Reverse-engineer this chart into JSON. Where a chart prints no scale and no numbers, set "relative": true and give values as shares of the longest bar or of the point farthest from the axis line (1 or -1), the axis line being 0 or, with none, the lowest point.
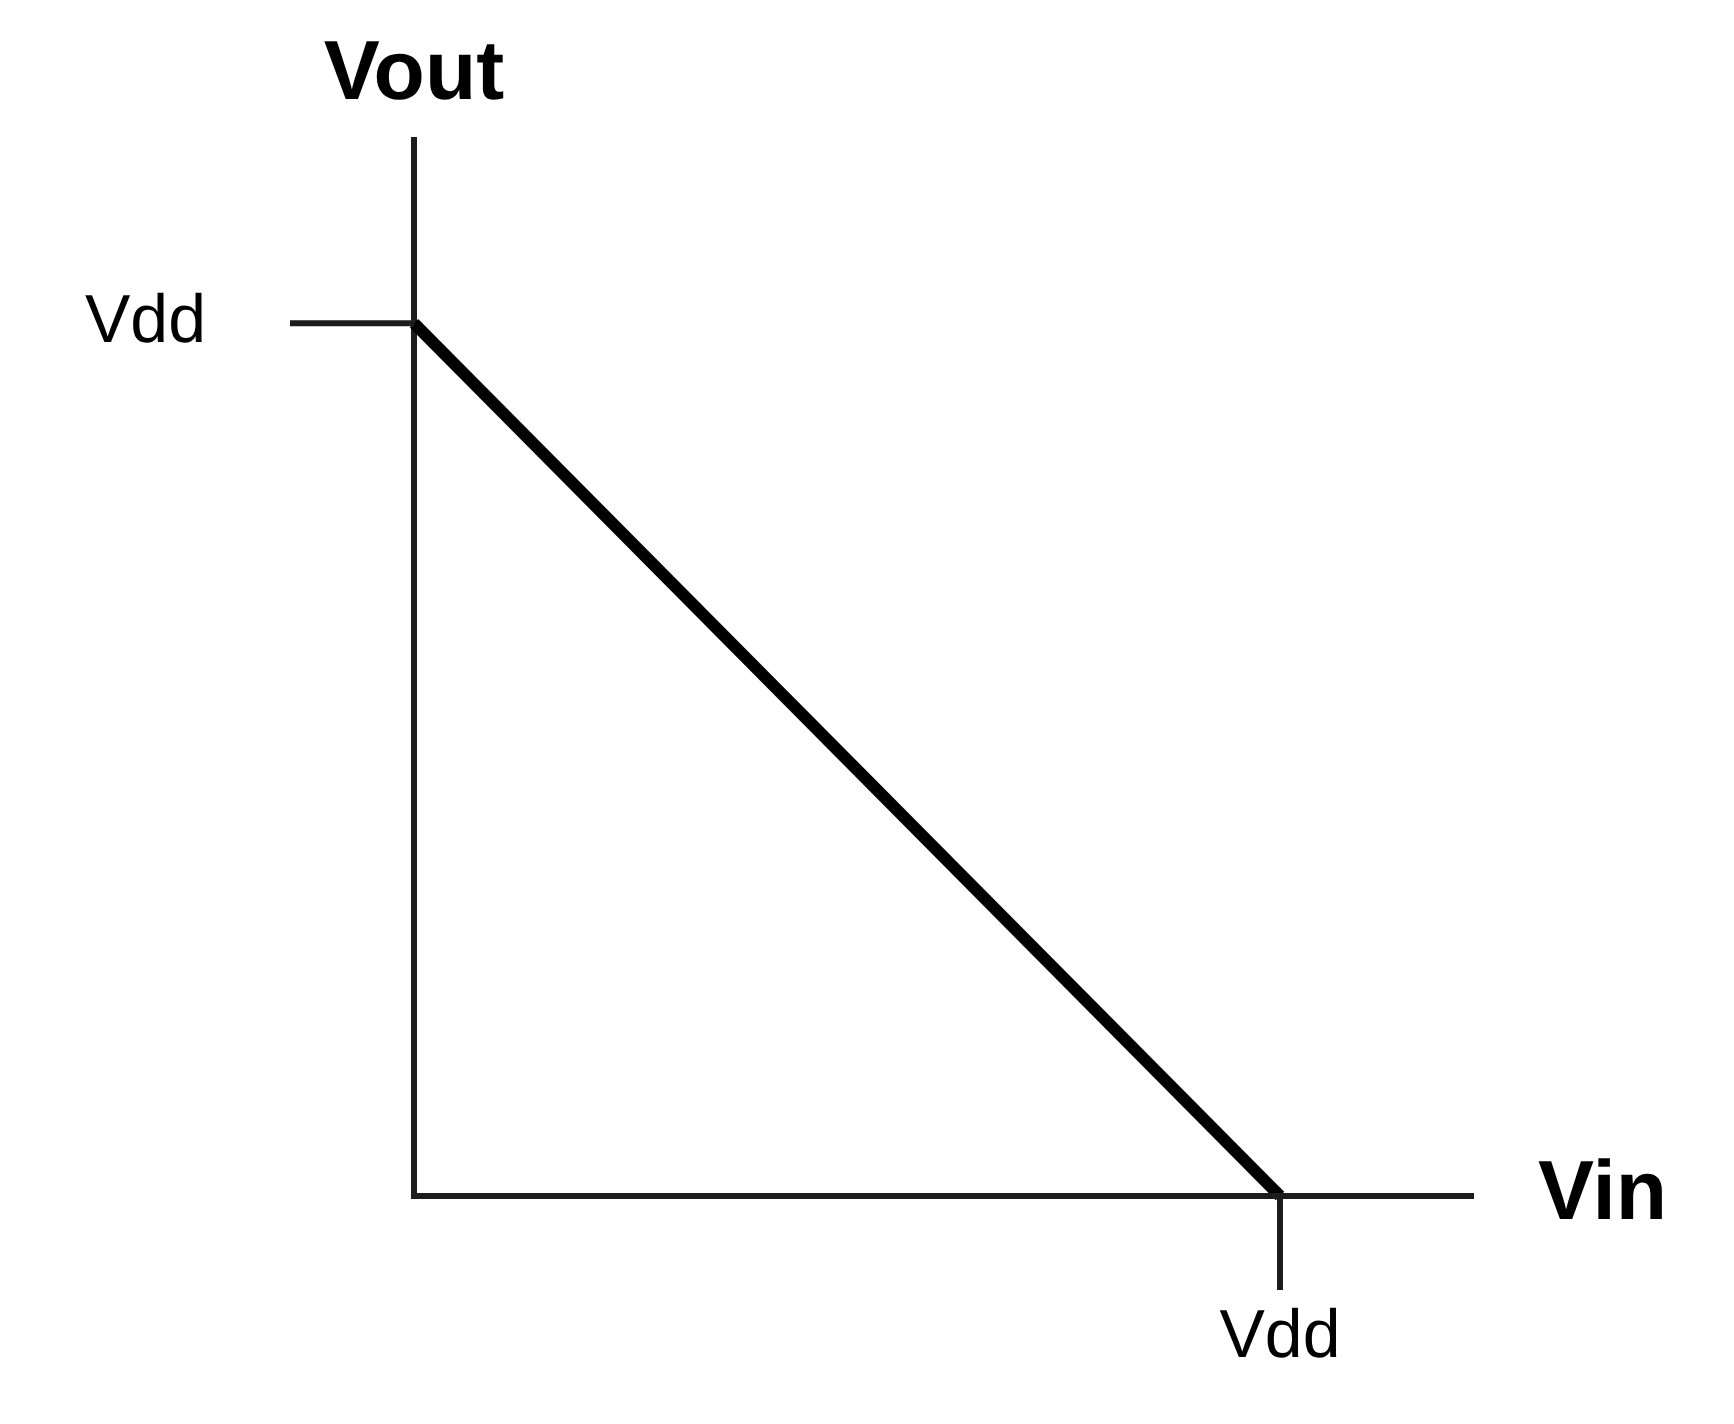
{
  "chart_data": {
    "type": "line",
    "xlabel": "Vin",
    "ylabel": "Vout",
    "relative": true,
    "categories": [
      null,
      null
    ],
    "series": [
      {
        "color": "#000000",
        "values": [
          1,
          0
        ]
      }
    ],
    "annotations": [
      "Vdd",
      "Vdd"
    ],
    "legend": false,
    "marker": "none",
    "line_style": "solid"
  }
}
